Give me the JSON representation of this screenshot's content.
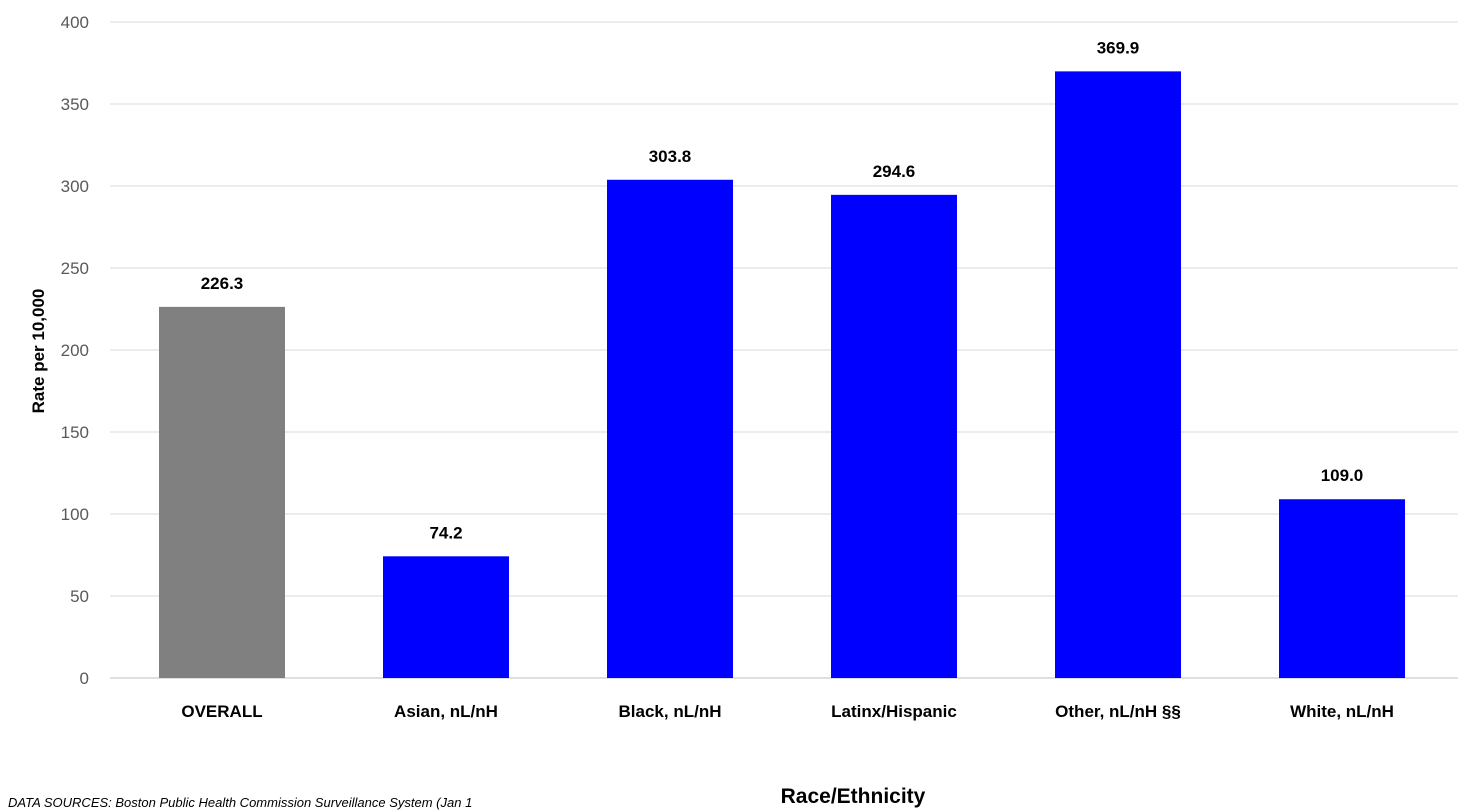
{
  "chart_data": {
    "type": "bar",
    "title": "",
    "categories": [
      "OVERALL",
      "Asian, nL/nH",
      "Black, nL/nH",
      "Latinx/Hispanic",
      "Other, nL/nH §§",
      "White, nL/nH"
    ],
    "values": [
      226.3,
      74.2,
      303.8,
      294.6,
      369.9,
      109.0
    ],
    "data_labels": [
      "226.3",
      "74.2",
      "303.8",
      "294.6",
      "369.9",
      "109.0"
    ],
    "bar_colors": [
      "#808080",
      "#0000ff",
      "#0000ff",
      "#0000ff",
      "#0000ff",
      "#0000ff"
    ],
    "xlabel": "Race/Ethnicity",
    "ylabel": "Rate per 10,000",
    "ylim": [
      0,
      400
    ],
    "yticks": [
      0,
      50,
      100,
      150,
      200,
      250,
      300,
      350,
      400
    ],
    "grid": true,
    "legend": "none"
  },
  "footnote": "DATA SOURCES: Boston Public Health Commission Surveillance System (Jan 1"
}
